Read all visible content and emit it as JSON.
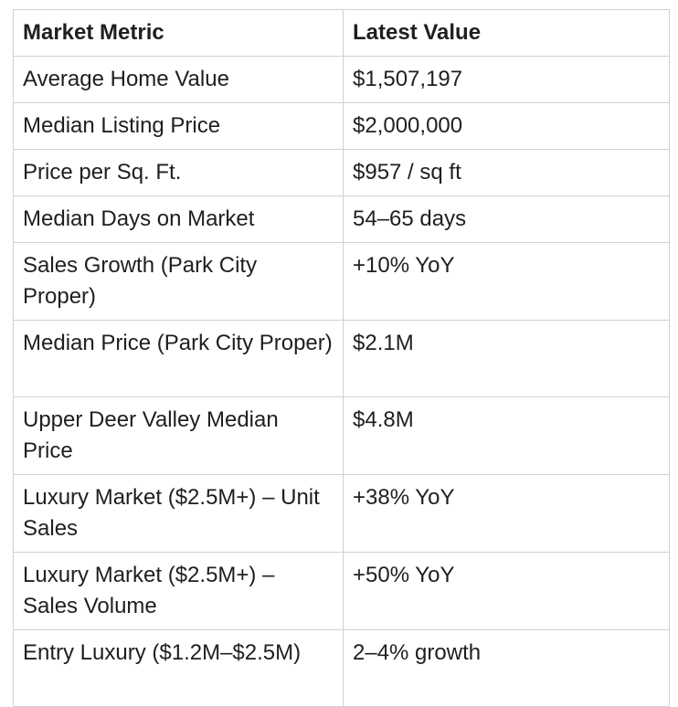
{
  "table": {
    "headers": [
      "Market Metric",
      "Latest Value"
    ],
    "rows": [
      [
        "Average Home Value",
        "$1,507,197"
      ],
      [
        "Median Listing Price",
        "$2,000,000"
      ],
      [
        "Price per Sq. Ft.",
        "$957 / sq ft"
      ],
      [
        "Median Days on Market",
        "54–65 days"
      ],
      [
        "Sales Growth (Park City Proper)",
        "+10% YoY"
      ],
      [
        "Median Price (Park City Proper)",
        "$2.1M"
      ],
      [
        "Upper Deer Valley Median Price",
        "$4.8M"
      ],
      [
        "Luxury Market ($2.5M+) – Unit Sales",
        "+38% YoY"
      ],
      [
        "Luxury Market ($2.5M+) – Sales Volume",
        "+50% YoY"
      ],
      [
        "Entry Luxury ($1.2M–$2.5M)",
        "2–4% growth"
      ]
    ]
  }
}
